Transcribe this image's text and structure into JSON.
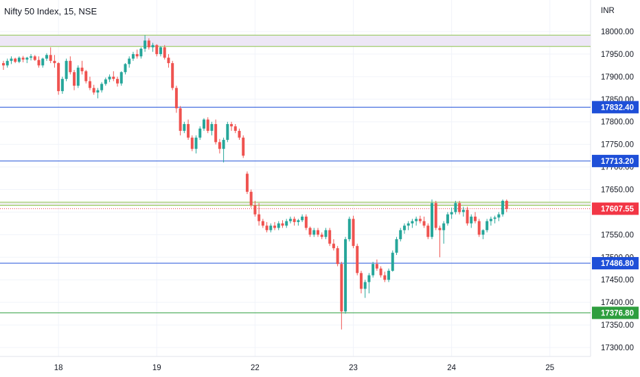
{
  "header": {
    "title": "Nifty 50 Index, 15, NSE"
  },
  "chart_data": {
    "type": "candlestick",
    "currency": "INR",
    "ylim": [
      17280,
      18040
    ],
    "y_ticks": [
      "18000.00",
      "17950.00",
      "17900.00",
      "17850.00",
      "17800.00",
      "17750.00",
      "17700.00",
      "17650.00",
      "17600.00",
      "17550.00",
      "17500.00",
      "17450.00",
      "17400.00",
      "17350.00",
      "17300.00"
    ],
    "x_ticks": [
      {
        "label": "18",
        "index": 14
      },
      {
        "label": "19",
        "index": 39
      },
      {
        "label": "22",
        "index": 64
      },
      {
        "label": "23",
        "index": 89
      },
      {
        "label": "24",
        "index": 114
      },
      {
        "label": "25",
        "index": 139
      }
    ],
    "zones": [
      {
        "from": 17967,
        "to": 17992,
        "fill": "#ede7f6",
        "border": "#8bc34a"
      },
      {
        "from": 17615,
        "to": 17622,
        "fill": "#eeeeee",
        "border": "#8bc34a"
      }
    ],
    "levels": [
      {
        "value": 17832.4,
        "label": "17832.40",
        "color": "#1e4fd8"
      },
      {
        "value": 17713.2,
        "label": "17713.20",
        "color": "#1e4fd8"
      },
      {
        "value": 17486.8,
        "label": "17486.80",
        "color": "#1e4fd8"
      },
      {
        "value": 17376.8,
        "label": "17376.80",
        "color": "#2e9e3e"
      }
    ],
    "last_price": {
      "value": 17607.55,
      "label": "17607.55",
      "color": "#f23645"
    },
    "colors": {
      "up": "#26a69a",
      "down": "#ef5350"
    },
    "candles": [
      [
        17930,
        17935,
        17915,
        17925
      ],
      [
        17925,
        17940,
        17920,
        17935
      ],
      [
        17935,
        17945,
        17928,
        17940
      ],
      [
        17940,
        17942,
        17930,
        17933
      ],
      [
        17933,
        17945,
        17930,
        17942
      ],
      [
        17942,
        17946,
        17932,
        17938
      ],
      [
        17938,
        17944,
        17930,
        17942
      ],
      [
        17942,
        17950,
        17936,
        17945
      ],
      [
        17945,
        17948,
        17935,
        17937
      ],
      [
        17937,
        17945,
        17920,
        17925
      ],
      [
        17925,
        17942,
        17920,
        17940
      ],
      [
        17940,
        17952,
        17935,
        17948
      ],
      [
        17948,
        17965,
        17930,
        17935
      ],
      [
        17935,
        17948,
        17920,
        17930
      ],
      [
        17930,
        17932,
        17860,
        17868
      ],
      [
        17868,
        17900,
        17862,
        17895
      ],
      [
        17895,
        17940,
        17890,
        17935
      ],
      [
        17935,
        17945,
        17905,
        17910
      ],
      [
        17910,
        17915,
        17870,
        17880
      ],
      [
        17880,
        17925,
        17875,
        17920
      ],
      [
        17920,
        17935,
        17905,
        17912
      ],
      [
        17912,
        17915,
        17885,
        17890
      ],
      [
        17890,
        17900,
        17870,
        17875
      ],
      [
        17875,
        17882,
        17860,
        17865
      ],
      [
        17865,
        17875,
        17852,
        17870
      ],
      [
        17870,
        17888,
        17865,
        17884
      ],
      [
        17884,
        17898,
        17880,
        17894
      ],
      [
        17894,
        17905,
        17888,
        17900
      ],
      [
        17900,
        17912,
        17890,
        17895
      ],
      [
        17895,
        17900,
        17878,
        17885
      ],
      [
        17885,
        17912,
        17880,
        17910
      ],
      [
        17910,
        17930,
        17905,
        17928
      ],
      [
        17928,
        17945,
        17920,
        17940
      ],
      [
        17940,
        17955,
        17935,
        17950
      ],
      [
        17950,
        17960,
        17940,
        17945
      ],
      [
        17945,
        17965,
        17940,
        17962
      ],
      [
        17962,
        17992,
        17955,
        17980
      ],
      [
        17980,
        17985,
        17960,
        17965
      ],
      [
        17965,
        17975,
        17955,
        17970
      ],
      [
        17970,
        17972,
        17945,
        17950
      ],
      [
        17950,
        17968,
        17945,
        17965
      ],
      [
        17965,
        17970,
        17938,
        17942
      ],
      [
        17942,
        17950,
        17920,
        17930
      ],
      [
        17930,
        17935,
        17870,
        17875
      ],
      [
        17875,
        17880,
        17820,
        17830
      ],
      [
        17830,
        17835,
        17770,
        17780
      ],
      [
        17780,
        17800,
        17775,
        17795
      ],
      [
        17795,
        17805,
        17760,
        17765
      ],
      [
        17765,
        17770,
        17735,
        17740
      ],
      [
        17740,
        17770,
        17730,
        17765
      ],
      [
        17765,
        17790,
        17760,
        17785
      ],
      [
        17785,
        17808,
        17780,
        17805
      ],
      [
        17805,
        17810,
        17775,
        17780
      ],
      [
        17780,
        17800,
        17770,
        17795
      ],
      [
        17795,
        17805,
        17750,
        17755
      ],
      [
        17755,
        17762,
        17730,
        17740
      ],
      [
        17740,
        17765,
        17710,
        17760
      ],
      [
        17760,
        17800,
        17755,
        17795
      ],
      [
        17795,
        17800,
        17780,
        17790
      ],
      [
        17790,
        17795,
        17775,
        17780
      ],
      [
        17780,
        17785,
        17760,
        17765
      ],
      [
        17765,
        17770,
        17720,
        17725
      ],
      [
        17685,
        17690,
        17640,
        17645
      ],
      [
        17645,
        17650,
        17610,
        17615
      ],
      [
        17615,
        17625,
        17590,
        17595
      ],
      [
        17595,
        17620,
        17570,
        17580
      ],
      [
        17580,
        17585,
        17565,
        17570
      ],
      [
        17570,
        17578,
        17555,
        17560
      ],
      [
        17560,
        17575,
        17555,
        17570
      ],
      [
        17570,
        17578,
        17560,
        17565
      ],
      [
        17565,
        17580,
        17560,
        17575
      ],
      [
        17575,
        17582,
        17565,
        17570
      ],
      [
        17570,
        17585,
        17565,
        17580
      ],
      [
        17580,
        17590,
        17575,
        17585
      ],
      [
        17585,
        17590,
        17570,
        17578
      ],
      [
        17578,
        17585,
        17570,
        17582
      ],
      [
        17582,
        17595,
        17578,
        17590
      ],
      [
        17590,
        17595,
        17560,
        17565
      ],
      [
        17565,
        17568,
        17545,
        17550
      ],
      [
        17550,
        17565,
        17545,
        17560
      ],
      [
        17560,
        17565,
        17545,
        17550
      ],
      [
        17550,
        17555,
        17540,
        17545
      ],
      [
        17545,
        17565,
        17540,
        17560
      ],
      [
        17560,
        17565,
        17525,
        17530
      ],
      [
        17530,
        17540,
        17515,
        17520
      ],
      [
        17520,
        17525,
        17480,
        17485
      ],
      [
        17485,
        17490,
        17340,
        17380
      ],
      [
        17380,
        17545,
        17375,
        17540
      ],
      [
        17540,
        17590,
        17535,
        17585
      ],
      [
        17585,
        17592,
        17520,
        17525
      ],
      [
        17525,
        17530,
        17460,
        17465
      ],
      [
        17465,
        17470,
        17420,
        17430
      ],
      [
        17430,
        17450,
        17410,
        17445
      ],
      [
        17445,
        17465,
        17420,
        17460
      ],
      [
        17460,
        17490,
        17455,
        17485
      ],
      [
        17485,
        17495,
        17470,
        17475
      ],
      [
        17475,
        17480,
        17455,
        17460
      ],
      [
        17460,
        17468,
        17445,
        17450
      ],
      [
        17450,
        17475,
        17445,
        17470
      ],
      [
        17470,
        17515,
        17468,
        17510
      ],
      [
        17510,
        17545,
        17505,
        17540
      ],
      [
        17540,
        17565,
        17535,
        17560
      ],
      [
        17560,
        17575,
        17552,
        17570
      ],
      [
        17570,
        17580,
        17560,
        17575
      ],
      [
        17575,
        17585,
        17565,
        17580
      ],
      [
        17580,
        17590,
        17570,
        17585
      ],
      [
        17585,
        17592,
        17575,
        17580
      ],
      [
        17580,
        17590,
        17565,
        17570
      ],
      [
        17570,
        17575,
        17540,
        17545
      ],
      [
        17545,
        17628,
        17540,
        17620
      ],
      [
        17620,
        17625,
        17560,
        17565
      ],
      [
        17565,
        17570,
        17500,
        17560
      ],
      [
        17560,
        17580,
        17530,
        17575
      ],
      [
        17575,
        17600,
        17570,
        17595
      ],
      [
        17595,
        17610,
        17585,
        17600
      ],
      [
        17600,
        17625,
        17595,
        17620
      ],
      [
        17620,
        17625,
        17595,
        17600
      ],
      [
        17600,
        17612,
        17590,
        17605
      ],
      [
        17605,
        17612,
        17570,
        17575
      ],
      [
        17575,
        17595,
        17565,
        17590
      ],
      [
        17590,
        17600,
        17575,
        17580
      ],
      [
        17580,
        17585,
        17545,
        17550
      ],
      [
        17550,
        17562,
        17540,
        17560
      ],
      [
        17560,
        17585,
        17555,
        17580
      ],
      [
        17580,
        17590,
        17570,
        17585
      ],
      [
        17585,
        17592,
        17575,
        17588
      ],
      [
        17588,
        17600,
        17580,
        17595
      ],
      [
        17595,
        17628,
        17590,
        17625
      ],
      [
        17625,
        17628,
        17600,
        17607
      ]
    ]
  }
}
